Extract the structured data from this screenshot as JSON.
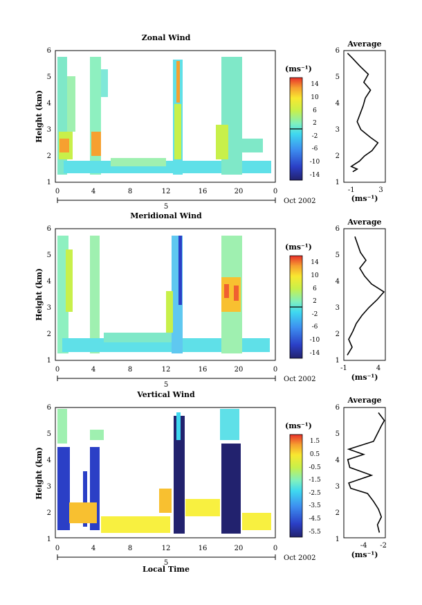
{
  "chart_data": [
    {
      "type": "heatmap",
      "title": "Zonal Wind",
      "ylabel": "Height (km)",
      "ylim": [
        1,
        6
      ],
      "yticks": [
        1,
        2,
        3,
        4,
        5,
        6
      ],
      "xlim": [
        0,
        24
      ],
      "xtick_labels": [
        "0",
        "4",
        "8",
        "12",
        "16",
        "20",
        "0"
      ],
      "day_label": "5",
      "date_label": "Oct 2002",
      "colorbar": {
        "unit": "(ms⁻¹)",
        "ticks": [
          "14",
          "10",
          "6",
          "2",
          "-2",
          "-6",
          "-10",
          "-14"
        ],
        "range": [
          -16,
          16
        ]
      },
      "averageProfile": {
        "title": "Average",
        "xlabel": "(ms⁻¹)",
        "xlim": [
          -2,
          3.6
        ],
        "xticks": [
          "-1",
          "3"
        ],
        "xtick_values": [
          -1,
          3
        ],
        "height": [
          1.4,
          1.5,
          1.6,
          1.8,
          2.0,
          2.2,
          2.5,
          2.7,
          3.0,
          3.3,
          3.6,
          3.9,
          4.2,
          4.5,
          4.8,
          5.1,
          5.4,
          5.7,
          5.9
        ],
        "value": [
          -0.8,
          -0.2,
          -1.0,
          0.1,
          0.8,
          1.8,
          2.6,
          1.6,
          0.3,
          -0.2,
          0.2,
          0.6,
          0.9,
          1.6,
          0.7,
          1.3,
          0.2,
          -0.8,
          -1.5
        ]
      }
    },
    {
      "type": "heatmap",
      "title": "Meridional Wind",
      "ylabel": "Height (km)",
      "ylim": [
        1,
        6
      ],
      "yticks": [
        1,
        2,
        3,
        4,
        5,
        6
      ],
      "xlim": [
        0,
        24
      ],
      "xtick_labels": [
        "0",
        "4",
        "8",
        "12",
        "16",
        "20",
        "0"
      ],
      "day_label": "5",
      "date_label": "Oct 2002",
      "colorbar": {
        "unit": "(ms⁻¹)",
        "ticks": [
          "14",
          "10",
          "6",
          "2",
          "-2",
          "-6",
          "-10",
          "-14"
        ],
        "range": [
          -16,
          16
        ]
      },
      "averageProfile": {
        "title": "Average",
        "xlabel": "(ms⁻¹)",
        "xlim": [
          -1,
          5
        ],
        "xticks": [
          "-1",
          "4"
        ],
        "xtick_values": [
          -1,
          4
        ],
        "height": [
          1.2,
          1.5,
          1.8,
          2.1,
          2.4,
          2.7,
          3.0,
          3.3,
          3.6,
          3.9,
          4.2,
          4.5,
          4.8,
          5.1,
          5.4,
          5.7
        ],
        "value": [
          -0.5,
          0.2,
          -0.3,
          0.3,
          0.8,
          1.6,
          2.6,
          3.8,
          4.8,
          3.0,
          2.0,
          1.3,
          2.2,
          1.4,
          1.0,
          0.6
        ]
      }
    },
    {
      "type": "heatmap",
      "title": "Vertical Wind",
      "ylabel": "Height (km)",
      "xlabel": "Local Time",
      "ylim": [
        1,
        6
      ],
      "yticks": [
        1,
        2,
        3,
        4,
        5,
        6
      ],
      "xlim": [
        0,
        24
      ],
      "xtick_labels": [
        "0",
        "4",
        "8",
        "12",
        "16",
        "20",
        "0"
      ],
      "day_label": "5",
      "date_label": "Oct 2002",
      "colorbar": {
        "unit": "(ms⁻¹)",
        "ticks": [
          "1.5",
          "0.5",
          "-0.5",
          "-1.5",
          "-2.5",
          "-3.5",
          "-4.5",
          "-5.5"
        ],
        "range": [
          -6,
          2
        ]
      },
      "averageProfile": {
        "title": "Average",
        "xlabel": "(ms⁻¹)",
        "xlim": [
          -6,
          -1.8
        ],
        "xticks": [
          "-4",
          "-2"
        ],
        "xtick_values": [
          -4,
          -2
        ],
        "height": [
          1.2,
          1.5,
          1.8,
          2.1,
          2.4,
          2.7,
          2.9,
          3.1,
          3.4,
          3.7,
          4.0,
          4.2,
          4.4,
          4.7,
          5.0,
          5.3,
          5.5,
          5.8
        ],
        "value": [
          -2.4,
          -2.6,
          -2.2,
          -2.5,
          -3.0,
          -3.6,
          -5.3,
          -5.5,
          -3.2,
          -5.4,
          -5.6,
          -4.0,
          -5.5,
          -3.0,
          -2.6,
          -2.2,
          -1.9,
          -2.5
        ]
      }
    }
  ]
}
